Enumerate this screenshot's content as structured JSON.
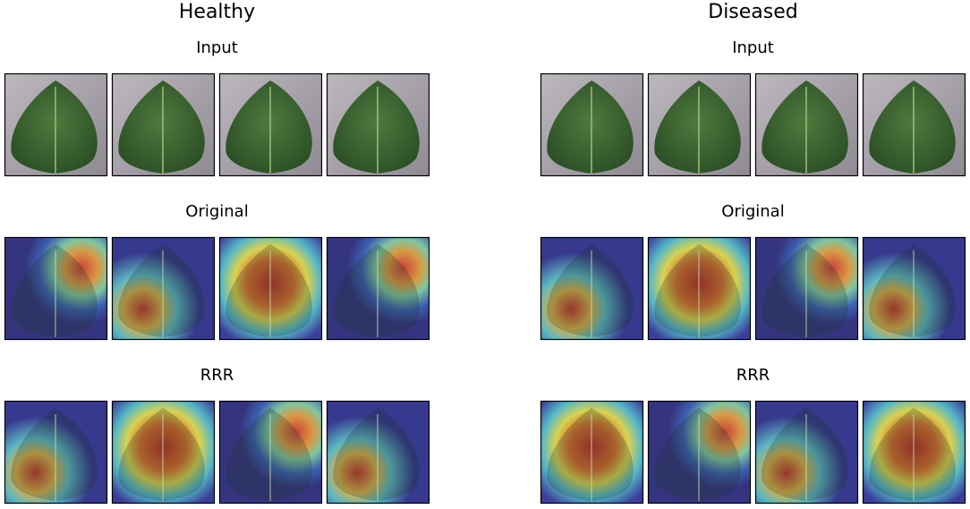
{
  "panels": [
    {
      "title": "Healthy",
      "rows": [
        {
          "label": "Input"
        },
        {
          "label": "Original"
        },
        {
          "label": "RRR"
        }
      ]
    },
    {
      "title": "Diseased",
      "rows": [
        {
          "label": "Input"
        },
        {
          "label": "Original"
        },
        {
          "label": "RRR"
        }
      ]
    }
  ]
}
